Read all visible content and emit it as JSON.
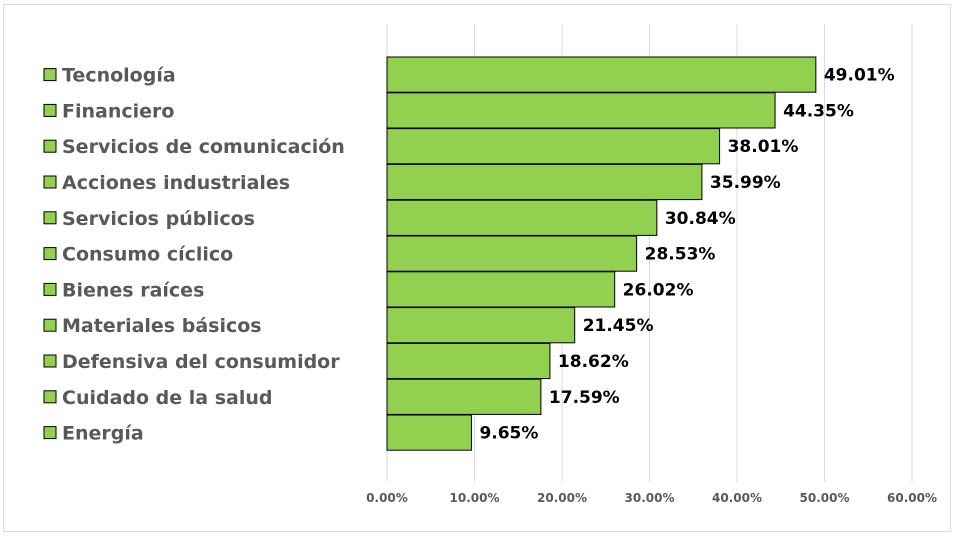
{
  "chart_data": {
    "type": "bar",
    "orientation": "horizontal",
    "categories": [
      "Tecnología",
      "Financiero",
      "Servicios de comunicación",
      "Acciones industriales",
      "Servicios públicos",
      "Consumo cíclico",
      "Bienes raíces",
      "Materiales básicos",
      "Defensiva del consumidor",
      "Cuidado de la salud",
      "Energía"
    ],
    "values": [
      49.01,
      44.35,
      38.01,
      35.99,
      30.84,
      28.53,
      26.02,
      21.45,
      18.62,
      17.59,
      9.65
    ],
    "value_labels": [
      "49.01%",
      "44.35%",
      "38.01%",
      "35.99%",
      "30.84%",
      "28.53%",
      "26.02%",
      "21.45%",
      "18.62%",
      "17.59%",
      "9.65%"
    ],
    "xlim": [
      0,
      60
    ],
    "x_ticks": [
      0,
      10,
      20,
      30,
      40,
      50,
      60
    ],
    "x_tick_labels": [
      "0.00%",
      "10.00%",
      "20.00%",
      "30.00%",
      "40.00%",
      "50.00%",
      "60.00%"
    ],
    "title": "",
    "xlabel": "",
    "ylabel": "",
    "grid": "vertical",
    "legend": "left",
    "colors": {
      "bar_fill": "#92d050",
      "bar_stroke": "#000000",
      "gridline": "#d9d9d9",
      "legend_text": "#595959",
      "tick_text": "#595959",
      "data_label_text": "#000000"
    }
  }
}
